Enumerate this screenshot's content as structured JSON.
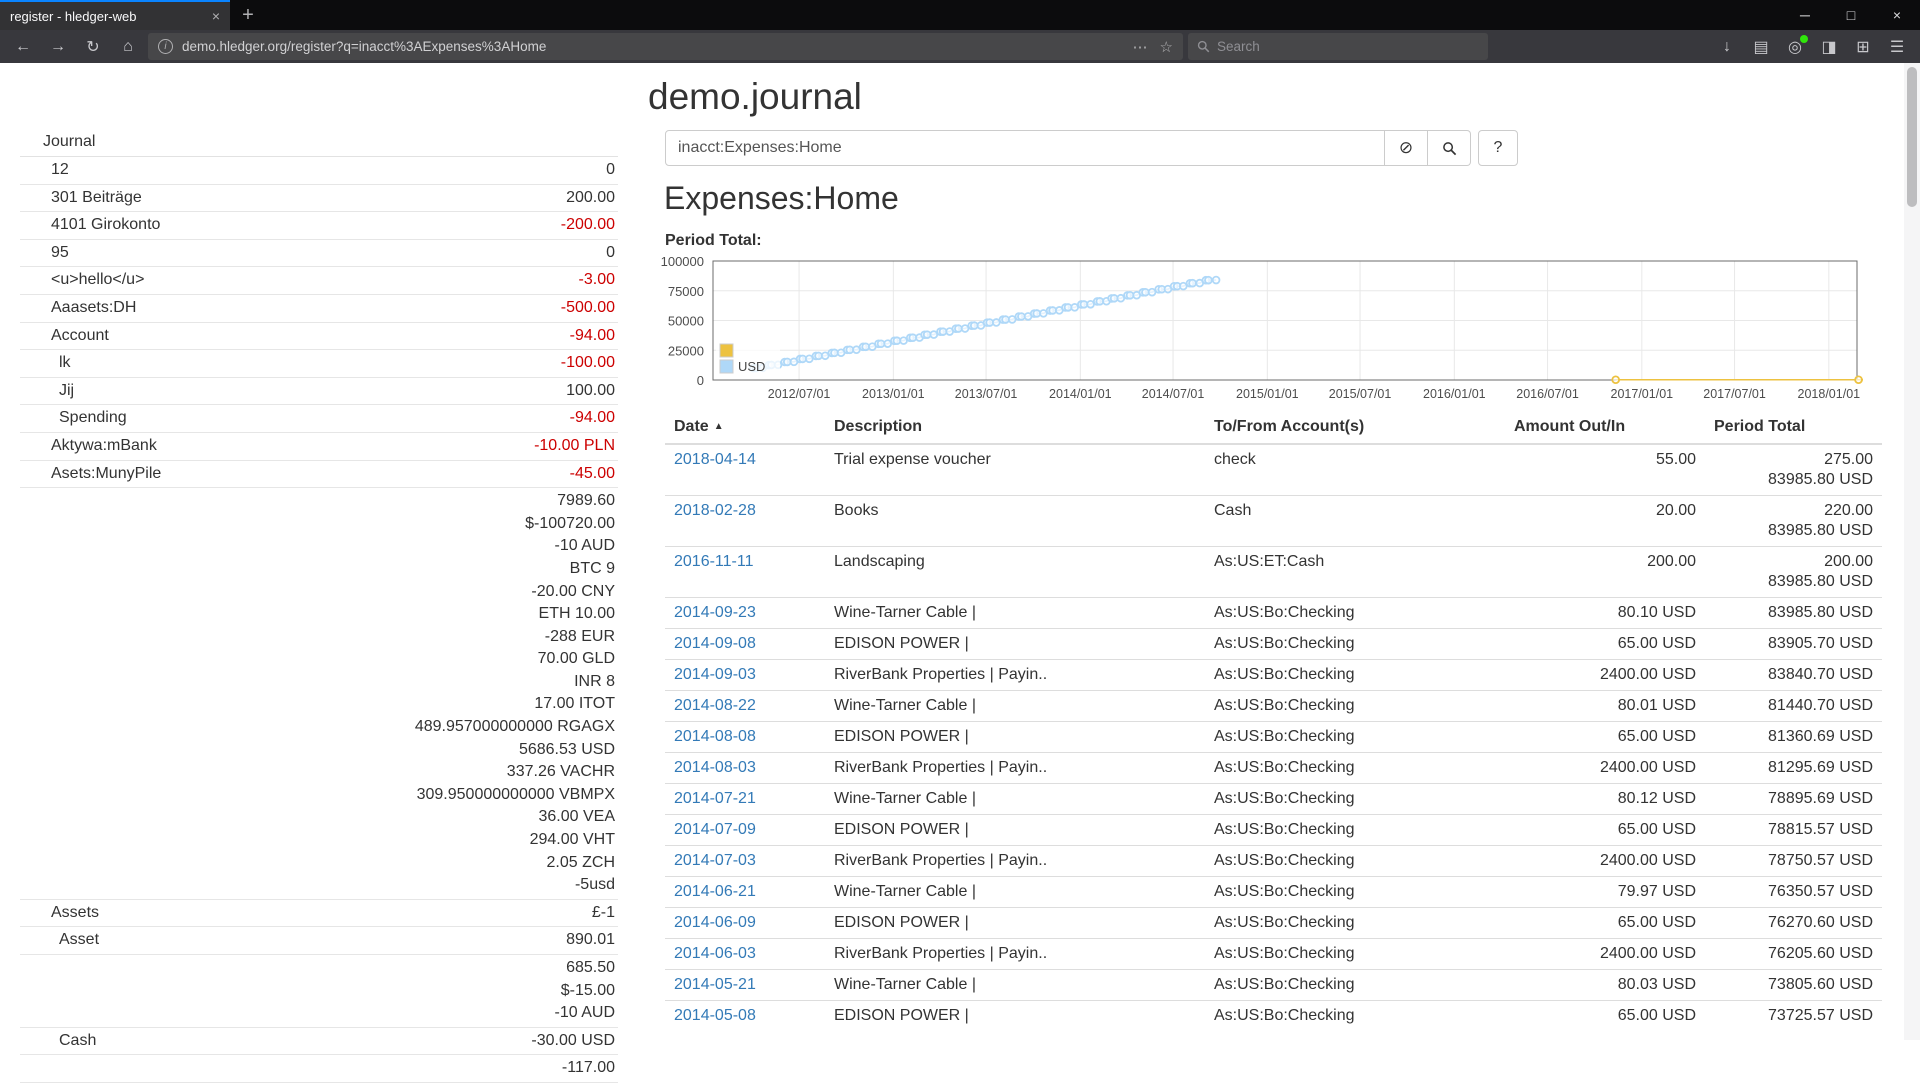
{
  "browser": {
    "tab_title": "register - hledger-web",
    "url": "demo.hledger.org/register?q=inacct%3AExpenses%3AHome",
    "search_placeholder": "Search"
  },
  "page": {
    "title": "demo.journal",
    "query": "inacct:Expenses:Home",
    "heading": "Expenses:Home",
    "chart_label": "Period Total:"
  },
  "colors": {
    "link": "#337ab7",
    "negative": "#cc0000",
    "series_nocommodity": "#edc240",
    "series_usd": "#afd8f8",
    "tab_accent": "#0a84ff"
  },
  "sidebar": {
    "heading": "Journal",
    "accounts": [
      {
        "name": "12",
        "indent": 1,
        "balances": [
          {
            "amount": "0",
            "neg": false
          }
        ]
      },
      {
        "name": "301 Beiträge",
        "indent": 1,
        "balances": [
          {
            "amount": "200.00",
            "neg": false
          }
        ]
      },
      {
        "name": "4101 Girokonto",
        "indent": 1,
        "balances": [
          {
            "amount": "-200.00",
            "neg": true
          }
        ]
      },
      {
        "name": "95",
        "indent": 1,
        "balances": [
          {
            "amount": "0",
            "neg": false
          }
        ]
      },
      {
        "name": "<u>hello</u>",
        "indent": 1,
        "balances": [
          {
            "amount": "-3.00",
            "neg": true
          }
        ]
      },
      {
        "name": "Aaasets:DH",
        "indent": 1,
        "balances": [
          {
            "amount": "-500.00",
            "neg": true
          }
        ]
      },
      {
        "name": "Account",
        "indent": 1,
        "balances": [
          {
            "amount": "-94.00",
            "neg": true
          }
        ]
      },
      {
        "name": "lk",
        "indent": 2,
        "balances": [
          {
            "amount": "-100.00",
            "neg": true
          }
        ]
      },
      {
        "name": "Jij",
        "indent": 2,
        "balances": [
          {
            "amount": "100.00",
            "neg": false
          }
        ]
      },
      {
        "name": "Spending",
        "indent": 2,
        "balances": [
          {
            "amount": "-94.00",
            "neg": true
          }
        ]
      },
      {
        "name": "Aktywa:mBank",
        "indent": 1,
        "balances": [
          {
            "amount": "-10.00 PLN",
            "neg": true
          }
        ]
      },
      {
        "name": "Asets:MunyPile",
        "indent": 1,
        "balances": [
          {
            "amount": "-45.00",
            "neg": true
          }
        ]
      },
      {
        "name": "",
        "indent": 1,
        "balances": [
          {
            "amount": "7989.60",
            "neg": false
          },
          {
            "amount": "$-100720.00",
            "neg": false
          },
          {
            "amount": "-10 AUD",
            "neg": false
          },
          {
            "amount": "BTC 9",
            "neg": false
          },
          {
            "amount": "-20.00 CNY",
            "neg": false
          },
          {
            "amount": "ETH 10.00",
            "neg": false
          },
          {
            "amount": "-288 EUR",
            "neg": false
          },
          {
            "amount": "70.00 GLD",
            "neg": false
          },
          {
            "amount": "INR 8",
            "neg": false
          },
          {
            "amount": "17.00 ITOT",
            "neg": false
          },
          {
            "amount": "489.957000000000 RGAGX",
            "neg": false
          },
          {
            "amount": "5686.53 USD",
            "neg": false
          },
          {
            "amount": "337.26 VACHR",
            "neg": false
          },
          {
            "amount": "309.950000000000 VBMPX",
            "neg": false
          },
          {
            "amount": "36.00 VEA",
            "neg": false
          },
          {
            "amount": "294.00 VHT",
            "neg": false
          },
          {
            "amount": "2.05 ZCH",
            "neg": false
          },
          {
            "amount": "-5usd",
            "neg": false
          }
        ]
      },
      {
        "name": "Assets",
        "indent": 1,
        "balances": [
          {
            "amount": "£-1",
            "neg": false
          }
        ]
      },
      {
        "name": "Asset",
        "indent": 2,
        "balances": [
          {
            "amount": "890.01",
            "neg": false
          }
        ]
      },
      {
        "name": "",
        "indent": 2,
        "balances": [
          {
            "amount": "685.50",
            "neg": false
          },
          {
            "amount": "$-15.00",
            "neg": false
          },
          {
            "amount": "-10 AUD",
            "neg": false
          }
        ]
      },
      {
        "name": "Cash",
        "indent": 2,
        "balances": [
          {
            "amount": "-30.00 USD",
            "neg": false
          }
        ]
      },
      {
        "name": "",
        "indent": 2,
        "balances": [
          {
            "amount": "-117.00",
            "neg": false
          }
        ]
      }
    ]
  },
  "register": {
    "columns": [
      "Date",
      "Description",
      "To/From Account(s)",
      "Amount Out/In",
      "Period Total"
    ],
    "rows": [
      {
        "date": "2018-04-14",
        "description": "Trial expense voucher",
        "account": "check",
        "amount": "55.00",
        "totals": [
          "275.00",
          "83985.80 USD"
        ]
      },
      {
        "date": "2018-02-28",
        "description": "Books",
        "account": "Cash",
        "amount": "20.00",
        "totals": [
          "220.00",
          "83985.80 USD"
        ]
      },
      {
        "date": "2016-11-11",
        "description": "Landscaping",
        "account": "As:US:ET:Cash",
        "amount": "200.00",
        "totals": [
          "200.00",
          "83985.80 USD"
        ]
      },
      {
        "date": "2014-09-23",
        "description": "Wine-Tarner Cable |",
        "account": "As:US:Bo:Checking",
        "amount": "80.10 USD",
        "totals": [
          "83985.80 USD"
        ]
      },
      {
        "date": "2014-09-08",
        "description": "EDISON POWER |",
        "account": "As:US:Bo:Checking",
        "amount": "65.00 USD",
        "totals": [
          "83905.70 USD"
        ]
      },
      {
        "date": "2014-09-03",
        "description": "RiverBank Properties | Payin..",
        "account": "As:US:Bo:Checking",
        "amount": "2400.00 USD",
        "totals": [
          "83840.70 USD"
        ]
      },
      {
        "date": "2014-08-22",
        "description": "Wine-Tarner Cable |",
        "account": "As:US:Bo:Checking",
        "amount": "80.01 USD",
        "totals": [
          "81440.70 USD"
        ]
      },
      {
        "date": "2014-08-08",
        "description": "EDISON POWER |",
        "account": "As:US:Bo:Checking",
        "amount": "65.00 USD",
        "totals": [
          "81360.69 USD"
        ]
      },
      {
        "date": "2014-08-03",
        "description": "RiverBank Properties | Payin..",
        "account": "As:US:Bo:Checking",
        "amount": "2400.00 USD",
        "totals": [
          "81295.69 USD"
        ]
      },
      {
        "date": "2014-07-21",
        "description": "Wine-Tarner Cable |",
        "account": "As:US:Bo:Checking",
        "amount": "80.12 USD",
        "totals": [
          "78895.69 USD"
        ]
      },
      {
        "date": "2014-07-09",
        "description": "EDISON POWER |",
        "account": "As:US:Bo:Checking",
        "amount": "65.00 USD",
        "totals": [
          "78815.57 USD"
        ]
      },
      {
        "date": "2014-07-03",
        "description": "RiverBank Properties | Payin..",
        "account": "As:US:Bo:Checking",
        "amount": "2400.00 USD",
        "totals": [
          "78750.57 USD"
        ]
      },
      {
        "date": "2014-06-21",
        "description": "Wine-Tarner Cable |",
        "account": "As:US:Bo:Checking",
        "amount": "79.97 USD",
        "totals": [
          "76350.57 USD"
        ]
      },
      {
        "date": "2014-06-09",
        "description": "EDISON POWER |",
        "account": "As:US:Bo:Checking",
        "amount": "65.00 USD",
        "totals": [
          "76270.60 USD"
        ]
      },
      {
        "date": "2014-06-03",
        "description": "RiverBank Properties | Payin..",
        "account": "As:US:Bo:Checking",
        "amount": "2400.00 USD",
        "totals": [
          "76205.60 USD"
        ]
      },
      {
        "date": "2014-05-21",
        "description": "Wine-Tarner Cable |",
        "account": "As:US:Bo:Checking",
        "amount": "80.03 USD",
        "totals": [
          "73805.60 USD"
        ]
      },
      {
        "date": "2014-05-08",
        "description": "EDISON POWER |",
        "account": "As:US:Bo:Checking",
        "amount": "65.00 USD",
        "totals": [
          "73725.57 USD"
        ]
      }
    ]
  },
  "chart_data": {
    "type": "line",
    "title": "Period Total:",
    "xlabel": "",
    "ylabel": "",
    "grid": true,
    "legend_position": "bottom-left-inside",
    "x_axis": {
      "min": "2012/01/15",
      "max": "2018/02/25",
      "ticks": [
        "2012/07/01",
        "2013/01/01",
        "2013/07/01",
        "2014/01/01",
        "2014/07/01",
        "2015/01/01",
        "2015/07/01",
        "2016/01/01",
        "2016/07/01",
        "2017/01/01",
        "2017/07/01",
        "2018/01/01"
      ]
    },
    "y_axis": {
      "min": 0,
      "max": 100000,
      "ticks": [
        0,
        25000,
        50000,
        75000,
        100000
      ]
    },
    "legend": [
      {
        "label": "",
        "color": "#edc240"
      },
      {
        "label": "USD",
        "color": "#afd8f8"
      }
    ],
    "series": [
      {
        "name": "",
        "color": "#edc240",
        "points": [
          [
            "2016/11/11",
            200.0
          ],
          [
            "2018/02/28",
            220.0
          ],
          [
            "2018/04/14",
            275.0
          ]
        ]
      },
      {
        "name": "USD",
        "color": "#afd8f8",
        "points": [
          [
            "2012/04/03",
            10035.57
          ],
          [
            "2012/04/08",
            10100.57
          ],
          [
            "2012/04/21",
            10180.57
          ],
          [
            "2012/05/03",
            12580.57
          ],
          [
            "2012/05/08",
            12645.57
          ],
          [
            "2012/05/21",
            12725.57
          ],
          [
            "2012/06/03",
            15125.57
          ],
          [
            "2012/06/08",
            15190.57
          ],
          [
            "2012/06/21",
            15270.57
          ],
          [
            "2012/07/03",
            17670.57
          ],
          [
            "2012/07/08",
            17735.57
          ],
          [
            "2012/07/21",
            17815.57
          ],
          [
            "2012/08/03",
            20215.57
          ],
          [
            "2012/08/08",
            20280.57
          ],
          [
            "2012/08/21",
            20360.57
          ],
          [
            "2012/09/03",
            22760.57
          ],
          [
            "2012/09/08",
            22825.57
          ],
          [
            "2012/09/21",
            22905.57
          ],
          [
            "2012/10/03",
            25305.57
          ],
          [
            "2012/10/08",
            25370.57
          ],
          [
            "2012/10/21",
            25450.57
          ],
          [
            "2012/11/03",
            27850.57
          ],
          [
            "2012/11/08",
            27915.57
          ],
          [
            "2012/11/21",
            27995.57
          ],
          [
            "2012/12/03",
            30395.57
          ],
          [
            "2012/12/08",
            30460.57
          ],
          [
            "2012/12/21",
            30540.57
          ],
          [
            "2013/01/03",
            32940.57
          ],
          [
            "2013/01/08",
            33005.57
          ],
          [
            "2013/01/21",
            33085.57
          ],
          [
            "2013/02/03",
            35485.57
          ],
          [
            "2013/02/08",
            35550.57
          ],
          [
            "2013/02/21",
            35630.57
          ],
          [
            "2013/03/03",
            38030.57
          ],
          [
            "2013/03/08",
            38095.57
          ],
          [
            "2013/03/21",
            38175.57
          ],
          [
            "2013/04/03",
            40575.57
          ],
          [
            "2013/04/08",
            40640.57
          ],
          [
            "2013/04/21",
            40720.57
          ],
          [
            "2013/05/03",
            43120.57
          ],
          [
            "2013/05/08",
            43185.57
          ],
          [
            "2013/05/21",
            43265.57
          ],
          [
            "2013/06/03",
            45665.57
          ],
          [
            "2013/06/08",
            45730.57
          ],
          [
            "2013/06/21",
            45810.57
          ],
          [
            "2013/07/03",
            48210.57
          ],
          [
            "2013/07/08",
            48275.57
          ],
          [
            "2013/07/21",
            48355.57
          ],
          [
            "2013/08/03",
            50755.57
          ],
          [
            "2013/08/08",
            50820.57
          ],
          [
            "2013/08/21",
            50900.57
          ],
          [
            "2013/09/03",
            53300.57
          ],
          [
            "2013/09/08",
            53365.57
          ],
          [
            "2013/09/21",
            53445.57
          ],
          [
            "2013/10/03",
            55845.57
          ],
          [
            "2013/10/08",
            55910.57
          ],
          [
            "2013/10/21",
            55990.57
          ],
          [
            "2013/11/03",
            58390.57
          ],
          [
            "2013/11/08",
            58455.57
          ],
          [
            "2013/11/21",
            58535.57
          ],
          [
            "2013/12/03",
            60935.57
          ],
          [
            "2013/12/08",
            61000.57
          ],
          [
            "2013/12/21",
            61080.57
          ],
          [
            "2014/01/03",
            63480.57
          ],
          [
            "2014/01/08",
            63545.57
          ],
          [
            "2014/01/21",
            63625.57
          ],
          [
            "2014/02/03",
            66025.57
          ],
          [
            "2014/02/08",
            66090.57
          ],
          [
            "2014/02/21",
            66170.57
          ],
          [
            "2014/03/03",
            68570.57
          ],
          [
            "2014/03/08",
            68635.57
          ],
          [
            "2014/03/21",
            68715.57
          ],
          [
            "2014/04/03",
            71115.57
          ],
          [
            "2014/04/08",
            71180.57
          ],
          [
            "2014/04/21",
            71260.57
          ],
          [
            "2014/05/03",
            73660.57
          ],
          [
            "2014/05/08",
            73725.57
          ],
          [
            "2014/05/21",
            73805.6
          ],
          [
            "2014/06/03",
            76205.6
          ],
          [
            "2014/06/09",
            76270.6
          ],
          [
            "2014/06/21",
            76350.57
          ],
          [
            "2014/07/03",
            78750.57
          ],
          [
            "2014/07/09",
            78815.57
          ],
          [
            "2014/07/21",
            78895.69
          ],
          [
            "2014/08/03",
            81295.69
          ],
          [
            "2014/08/08",
            81360.69
          ],
          [
            "2014/08/22",
            81440.7
          ],
          [
            "2014/09/03",
            83840.7
          ],
          [
            "2014/09/08",
            83905.7
          ],
          [
            "2014/09/23",
            83985.8
          ]
        ]
      }
    ]
  }
}
